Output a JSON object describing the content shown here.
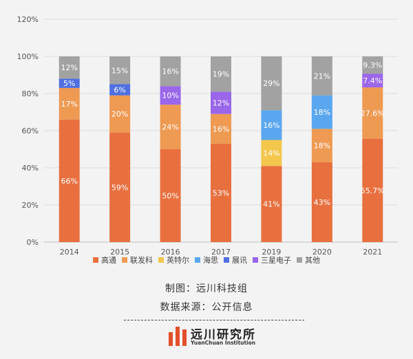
{
  "chart_data": {
    "type": "bar",
    "stacked": true,
    "categories": [
      "2014",
      "2015",
      "2016",
      "2017",
      "2019",
      "2020",
      "2021"
    ],
    "ylim": [
      0,
      120
    ],
    "yticks": [
      0,
      20,
      40,
      60,
      80,
      100,
      120
    ],
    "ytick_labels": [
      "0%",
      "20%",
      "40%",
      "60%",
      "80%",
      "100%",
      "120%"
    ],
    "grid": true,
    "legend_position": "bottom",
    "series": [
      {
        "name": "高通",
        "color": "#e8703f",
        "values": [
          66,
          59,
          50,
          53,
          41,
          43,
          55.7
        ],
        "labels": [
          "66%",
          "59%",
          "50%",
          "53%",
          "41%",
          "43%",
          "55.7%"
        ]
      },
      {
        "name": "联发科",
        "color": "#ee9a52",
        "values": [
          17,
          20,
          24,
          16,
          0,
          18,
          27.6
        ],
        "labels": [
          "17%",
          "20%",
          "24%",
          "16%",
          "",
          "18%",
          "27.6%"
        ]
      },
      {
        "name": "英特尔",
        "color": "#f3c64c",
        "values": [
          0,
          0,
          0,
          0,
          14,
          0,
          0
        ],
        "labels": [
          "",
          "",
          "",
          "",
          "14%",
          "",
          ""
        ]
      },
      {
        "name": "海思",
        "color": "#5aa7ef",
        "values": [
          0,
          0,
          0,
          0,
          16,
          18,
          0
        ],
        "labels": [
          "",
          "",
          "",
          "",
          "16%",
          "18%",
          ""
        ]
      },
      {
        "name": "展讯",
        "color": "#4f6fe2",
        "values": [
          5,
          6,
          0,
          0,
          0,
          0,
          0
        ],
        "labels": [
          "5%",
          "6%",
          "",
          "",
          "",
          "",
          ""
        ]
      },
      {
        "name": "三星电子",
        "color": "#9a66ea",
        "values": [
          0,
          0,
          10,
          12,
          0,
          0,
          7.4
        ],
        "labels": [
          "",
          "",
          "10%",
          "12%",
          "",
          "",
          "7.4%"
        ]
      },
      {
        "name": "其他",
        "color": "#a2a2a2",
        "values": [
          12,
          15,
          16,
          19,
          29,
          21,
          9.3
        ],
        "labels": [
          "12%",
          "15%",
          "16%",
          "19%",
          "29%",
          "21%",
          "9.3%"
        ]
      }
    ]
  },
  "captions": {
    "maker": "制图：远川科技组",
    "source": "数据来源：公开信息"
  },
  "logo": {
    "name_cn": "远川研究所",
    "name_en": "YuanChuan Institution"
  }
}
